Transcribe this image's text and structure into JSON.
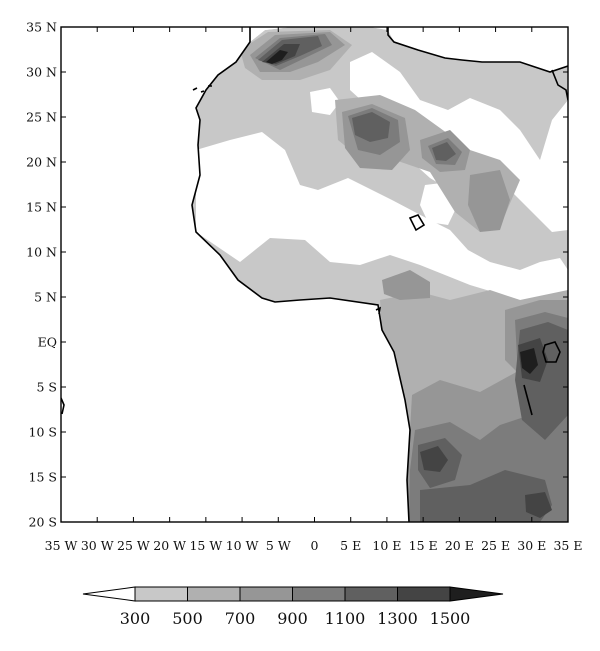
{
  "map": {
    "lat_labels": [
      "35 N",
      "30 N",
      "25 N",
      "20 N",
      "15 N",
      "10 N",
      "5 N",
      "EQ",
      "5 S",
      "10 S",
      "15 S",
      "20 S"
    ],
    "lon_labels": [
      "35 W",
      "30 W",
      "25 W",
      "20 W",
      "15 W",
      "10 W",
      "5 W",
      "0",
      "5 E",
      "10 E",
      "15 E",
      "20 E",
      "25 E",
      "30 E",
      "35 E"
    ],
    "lon_range": [
      -35,
      35
    ],
    "lat_range": [
      -20,
      35
    ]
  },
  "colorbar": {
    "levels": [
      "300",
      "500",
      "700",
      "900",
      "1100",
      "1300",
      "1500"
    ],
    "colors": [
      "#ffffff",
      "#c8c8c8",
      "#b0b0b0",
      "#969696",
      "#7c7c7c",
      "#606060",
      "#444444",
      "#1e1e1e"
    ]
  }
}
